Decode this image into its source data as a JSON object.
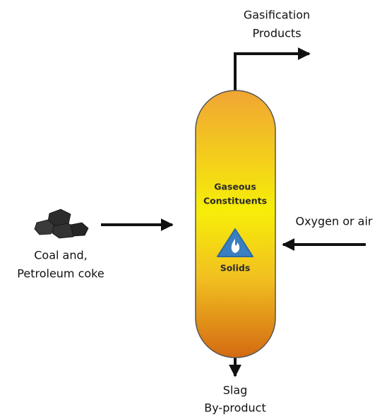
{
  "labels": {
    "products": [
      "Gasification",
      "Products"
    ],
    "gaseous": [
      "Gaseous",
      "Constituents"
    ],
    "solids": "Solids",
    "oxidant": "Oxygen or air",
    "feed": [
      "Coal and,",
      "Petroleum coke"
    ],
    "slag": [
      "Slag",
      "By-product"
    ]
  }
}
